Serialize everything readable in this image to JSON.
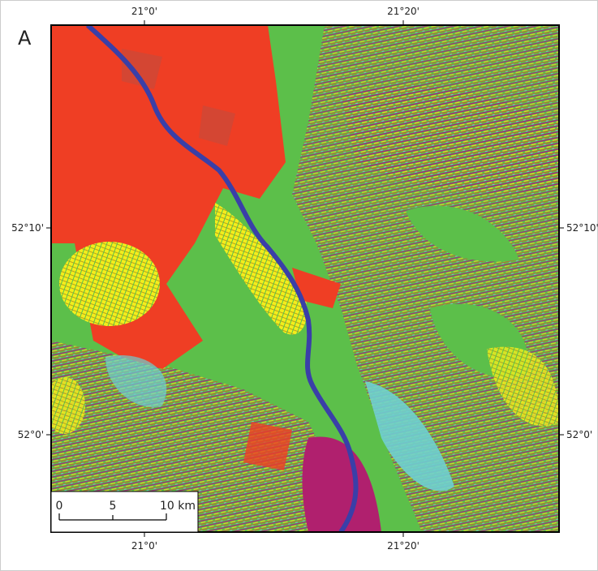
{
  "panel_label": "A",
  "top_labels": [
    "21°0'",
    "21°20'"
  ],
  "bottom_labels": [
    "21°0'",
    "21°20'"
  ],
  "left_labels": [
    "52°10'",
    "52°0'"
  ],
  "right_labels": [
    "52°10'",
    "52°0'"
  ],
  "scale_bar": {
    "labels": [
      "0",
      "5",
      "10 km"
    ]
  }
}
